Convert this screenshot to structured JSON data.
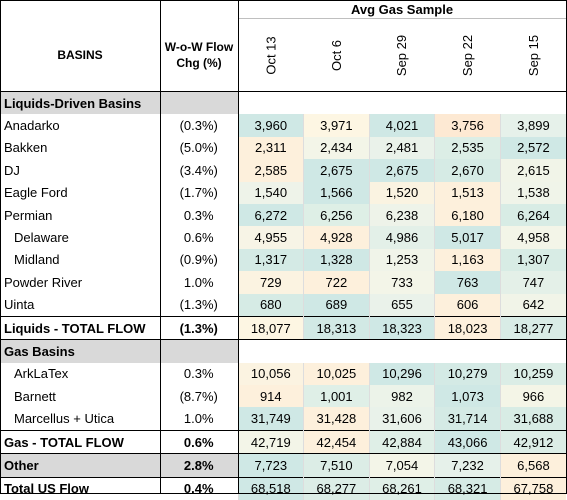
{
  "header": {
    "group_title": "Avg Gas Sample",
    "basins_label": "BASINS",
    "chg_label_line1": "W-o-W Flow",
    "chg_label_line2": "Chg (%)",
    "dates": [
      "Oct 13",
      "Oct 6",
      "Sep 29",
      "Sep 22",
      "Sep 15"
    ]
  },
  "rows": [
    {
      "type": "section",
      "name": "Liquids-Driven Basins"
    },
    {
      "type": "data",
      "name": "Anadarko",
      "chg": "(0.3%)",
      "values": [
        "3,960",
        "3,971",
        "4,021",
        "3,756",
        "3,899"
      ],
      "colors": [
        "#cfe8e5",
        "#fdf6e3",
        "#cfe8e5",
        "#fde9d3",
        "#e6f1ea"
      ]
    },
    {
      "type": "data",
      "name": "Bakken",
      "chg": "(5.0%)",
      "values": [
        "2,311",
        "2,434",
        "2,481",
        "2,535",
        "2,572"
      ],
      "colors": [
        "#fdf0dc",
        "#f3f5e8",
        "#eaf2ea",
        "#dceee6",
        "#cfe8e5"
      ]
    },
    {
      "type": "data",
      "name": "DJ",
      "chg": "(3.4%)",
      "values": [
        "2,585",
        "2,675",
        "2,675",
        "2,670",
        "2,615"
      ],
      "colors": [
        "#fdf0dc",
        "#cfe8e5",
        "#cfe8e5",
        "#d6ebe5",
        "#f1f4e8"
      ]
    },
    {
      "type": "data",
      "name": "Eagle Ford",
      "chg": "(1.7%)",
      "values": [
        "1,540",
        "1,566",
        "1,520",
        "1,513",
        "1,538"
      ],
      "colors": [
        "#eef3e9",
        "#cfe8e5",
        "#faf3e1",
        "#fdf0dc",
        "#f0f4e9"
      ]
    },
    {
      "type": "data",
      "name": "Permian",
      "chg": "0.3%",
      "values": [
        "6,272",
        "6,256",
        "6,238",
        "6,180",
        "6,264"
      ],
      "colors": [
        "#cfe8e5",
        "#deefe6",
        "#eef3e9",
        "#fdf0dc",
        "#d8ece5"
      ]
    },
    {
      "type": "data",
      "sub": true,
      "name": "Delaware",
      "chg": "0.6%",
      "values": [
        "4,955",
        "4,928",
        "4,986",
        "5,017",
        "4,958"
      ],
      "colors": [
        "#f7f4e6",
        "#fdf0dc",
        "#e3f0e8",
        "#cfe8e5",
        "#f3f5e8"
      ]
    },
    {
      "type": "data",
      "sub": true,
      "name": "Midland",
      "chg": "(0.9%)",
      "values": [
        "1,317",
        "1,328",
        "1,253",
        "1,163",
        "1,307"
      ],
      "colors": [
        "#d4eae5",
        "#cfe8e5",
        "#f0f4e9",
        "#fdf0dc",
        "#d8ece5"
      ]
    },
    {
      "type": "data",
      "name": "Powder River",
      "chg": "1.0%",
      "values": [
        "729",
        "722",
        "733",
        "763",
        "747"
      ],
      "colors": [
        "#fbf3e1",
        "#fdf0dc",
        "#f3f5e8",
        "#cfe8e5",
        "#e4f0e8"
      ]
    },
    {
      "type": "data",
      "name": "Uinta",
      "chg": "(1.3%)",
      "values": [
        "680",
        "689",
        "655",
        "606",
        "642"
      ],
      "colors": [
        "#d6ebe5",
        "#cfe8e5",
        "#eaf2ea",
        "#fdf0dc",
        "#f1f4e8"
      ]
    },
    {
      "type": "total",
      "name": "Liquids - TOTAL FLOW",
      "chg": "(1.3%)",
      "values": [
        "18,077",
        "18,313",
        "18,323",
        "18,023",
        "18,277"
      ],
      "colors": [
        "#fdf6e3",
        "#d2e9e5",
        "#cfe8e5",
        "#fdf0dc",
        "#d9ece6"
      ]
    },
    {
      "type": "section",
      "name": "Gas Basins"
    },
    {
      "type": "data",
      "sub": true,
      "name": "ArkLaTex",
      "chg": "0.3%",
      "values": [
        "10,056",
        "10,025",
        "10,296",
        "10,279",
        "10,259"
      ],
      "colors": [
        "#fbf3e1",
        "#fdf0dc",
        "#cfe8e5",
        "#d4eae5",
        "#dbede6"
      ]
    },
    {
      "type": "data",
      "sub": true,
      "name": "Barnett",
      "chg": "(8.7%)",
      "values": [
        "914",
        "1,001",
        "982",
        "1,073",
        "966"
      ],
      "colors": [
        "#fdf0dc",
        "#dfefe7",
        "#ecf3e9",
        "#cfe8e5",
        "#f4f5e7"
      ]
    },
    {
      "type": "data",
      "sub": true,
      "name": "Marcellus + Utica",
      "chg": "1.0%",
      "values": [
        "31,749",
        "31,428",
        "31,606",
        "31,714",
        "31,688"
      ],
      "colors": [
        "#cfe8e5",
        "#fdf0dc",
        "#e9f2ea",
        "#d4eae5",
        "#d8ece5"
      ]
    },
    {
      "type": "total",
      "name": "Gas - TOTAL FLOW",
      "chg": "0.6%",
      "values": [
        "42,719",
        "42,454",
        "42,884",
        "43,066",
        "42,912"
      ],
      "colors": [
        "#f3f5e8",
        "#fdf0dc",
        "#dfefe7",
        "#cfe8e5",
        "#dcede6"
      ]
    },
    {
      "type": "other",
      "name": "Other",
      "chg": "2.8%",
      "values": [
        "7,723",
        "7,510",
        "7,054",
        "7,232",
        "6,568"
      ],
      "colors": [
        "#cfe8e5",
        "#dcede6",
        "#f3f5e8",
        "#e6f1ea",
        "#fdf0dc"
      ]
    },
    {
      "type": "grand",
      "name": "Total US Flow",
      "chg": "0.4%",
      "values": [
        "68,518",
        "68,277",
        "68,261",
        "68,321",
        "67,758"
      ],
      "colors": [
        "#cfe8e5",
        "#dcede6",
        "#dfefe7",
        "#d6ebe5",
        "#fdf0dc"
      ]
    }
  ]
}
